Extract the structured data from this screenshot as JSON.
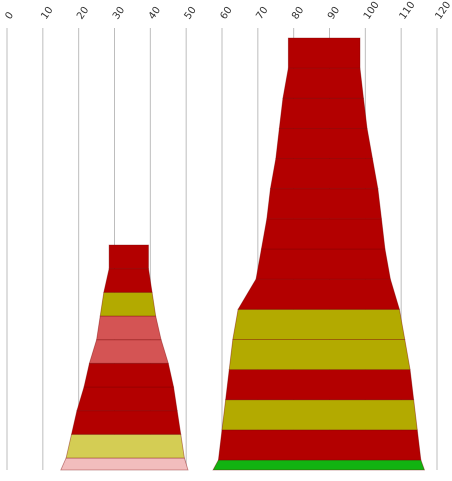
{
  "chart_data": {
    "type": "stacked-trapezoid-towers",
    "title": "",
    "xlabel": "",
    "ylabel": "",
    "x_axis": {
      "ticks": [
        0,
        10,
        20,
        30,
        40,
        50,
        60,
        70,
        80,
        90,
        100,
        110,
        120
      ],
      "range": [
        0,
        120
      ],
      "label_orientation": "rotated",
      "grid": true
    },
    "colors": {
      "red": "#b30000",
      "olive": "#b3aa00",
      "light_red": "#d45454",
      "light_olive": "#d4cd54",
      "pink": "#f2bdbd",
      "green": "#11b311"
    },
    "towers": [
      {
        "bands": [
          {
            "x_left": 15,
            "x_right": 50.5,
            "color": "pink"
          },
          {
            "x_left": 16.5,
            "x_right": 49.5,
            "color": "light_olive"
          },
          {
            "x_left": 18,
            "x_right": 48.5,
            "color": "red"
          },
          {
            "x_left": 19.5,
            "x_right": 47.5,
            "color": "red"
          },
          {
            "x_left": 21.5,
            "x_right": 46.5,
            "color": "red"
          },
          {
            "x_left": 23,
            "x_right": 45,
            "color": "light_red"
          },
          {
            "x_left": 25,
            "x_right": 43,
            "color": "light_red"
          },
          {
            "x_left": 26,
            "x_right": 41.5,
            "color": "olive"
          },
          {
            "x_left": 27,
            "x_right": 40.5,
            "color": "red"
          },
          {
            "x_left": 28.5,
            "x_right": 39.5,
            "color": "red"
          }
        ]
      },
      {
        "bands": [
          {
            "x_left": 57.5,
            "x_right": 116.5,
            "color": "green"
          },
          {
            "x_left": 59,
            "x_right": 115.5,
            "color": "red"
          },
          {
            "x_left": 60,
            "x_right": 114.5,
            "color": "olive"
          },
          {
            "x_left": 61,
            "x_right": 113.5,
            "color": "red"
          },
          {
            "x_left": 62,
            "x_right": 112.5,
            "color": "olive"
          },
          {
            "x_left": 63,
            "x_right": 111,
            "color": "olive"
          },
          {
            "x_left": 64.5,
            "x_right": 109.5,
            "color": "red"
          },
          {
            "x_left": 69.5,
            "x_right": 107,
            "color": "red"
          },
          {
            "x_left": 71,
            "x_right": 105.5,
            "color": "red"
          },
          {
            "x_left": 72.5,
            "x_right": 104.5,
            "color": "red"
          },
          {
            "x_left": 73.5,
            "x_right": 103.5,
            "color": "red"
          },
          {
            "x_left": 75,
            "x_right": 102,
            "color": "red"
          },
          {
            "x_left": 76,
            "x_right": 100.5,
            "color": "red"
          },
          {
            "x_left": 77,
            "x_right": 99.5,
            "color": "red"
          },
          {
            "x_left": 78.5,
            "x_right": 98.5,
            "color": "red"
          }
        ]
      }
    ]
  }
}
